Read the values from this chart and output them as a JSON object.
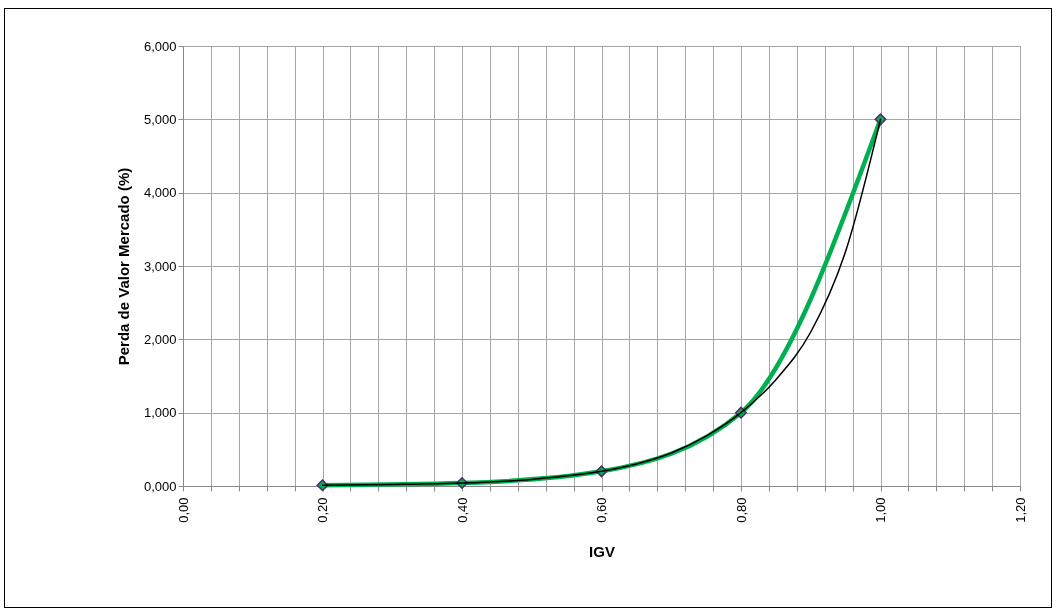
{
  "chart_data": {
    "type": "line",
    "xlabel": "IGV",
    "ylabel": "Perda de Valor Mercado (%)",
    "x": [
      0.2,
      0.4,
      0.6,
      0.8,
      1.0
    ],
    "series": [
      {
        "color": "#00b050",
        "values": [
          0.01,
          0.04,
          0.2,
          1.0,
          5.0
        ],
        "marker": "diamond"
      },
      {
        "type": "line",
        "color": "#000000",
        "marker": "none",
        "x": [
          0.2,
          0.3,
          0.4,
          0.5,
          0.6,
          0.65,
          0.7,
          0.75,
          0.8,
          0.85,
          0.9,
          0.95,
          1.0
        ],
        "values": [
          0.01,
          0.02,
          0.04,
          0.09,
          0.2,
          0.3,
          0.45,
          0.68,
          1.0,
          1.45,
          2.1,
          3.2,
          5.0
        ]
      }
    ],
    "xlim": [
      0,
      1.2
    ],
    "xticks": [
      {
        "value": 0,
        "label": "0,00"
      },
      {
        "value": 0.04,
        "label": null
      },
      {
        "value": 0.08,
        "label": null
      },
      {
        "value": 0.12,
        "label": null
      },
      {
        "value": 0.16,
        "label": null
      },
      {
        "value": 0.2,
        "label": "0,20"
      },
      {
        "value": 0.24,
        "label": null
      },
      {
        "value": 0.28,
        "label": null
      },
      {
        "value": 0.32,
        "label": null
      },
      {
        "value": 0.36,
        "label": null
      },
      {
        "value": 0.4,
        "label": "0,40"
      },
      {
        "value": 0.44,
        "label": null
      },
      {
        "value": 0.48,
        "label": null
      },
      {
        "value": 0.52,
        "label": null
      },
      {
        "value": 0.56,
        "label": null
      },
      {
        "value": 0.6,
        "label": "0,60"
      },
      {
        "value": 0.64,
        "label": null
      },
      {
        "value": 0.68,
        "label": null
      },
      {
        "value": 0.72,
        "label": null
      },
      {
        "value": 0.76,
        "label": null
      },
      {
        "value": 0.8,
        "label": "0,80"
      },
      {
        "value": 0.84,
        "label": null
      },
      {
        "value": 0.88,
        "label": null
      },
      {
        "value": 0.92,
        "label": null
      },
      {
        "value": 0.96,
        "label": null
      },
      {
        "value": 1.0,
        "label": "1,00"
      },
      {
        "value": 1.04,
        "label": null
      },
      {
        "value": 1.08,
        "label": null
      },
      {
        "value": 1.12,
        "label": null
      },
      {
        "value": 1.16,
        "label": null
      },
      {
        "value": 1.2,
        "label": "1,20"
      }
    ],
    "ylim": [
      0,
      6
    ],
    "yticks": [
      {
        "value": 0,
        "label": "0,000"
      },
      {
        "value": 1,
        "label": "1,000"
      },
      {
        "value": 2,
        "label": "2,000"
      },
      {
        "value": 3,
        "label": "3,000"
      },
      {
        "value": 4,
        "label": "4,000"
      },
      {
        "value": 5,
        "label": "5,000"
      },
      {
        "value": 6,
        "label": "6,000"
      }
    ],
    "grid": true,
    "line_style": "solid"
  }
}
